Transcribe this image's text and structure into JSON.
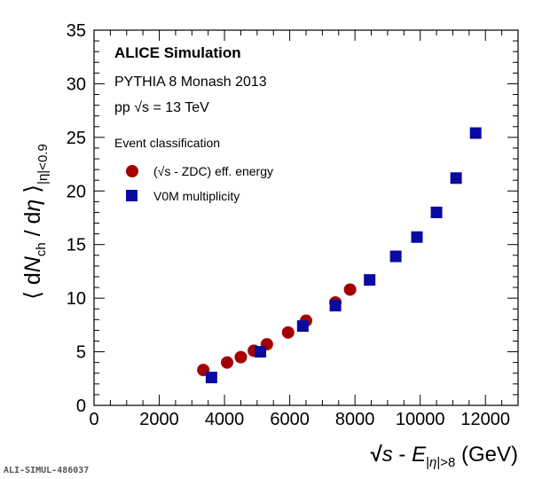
{
  "chart_data": {
    "type": "scatter",
    "xlim": [
      0,
      13000
    ],
    "ylim": [
      0,
      35
    ],
    "x_ticks": [
      0,
      2000,
      4000,
      6000,
      8000,
      10000,
      12000
    ],
    "y_ticks": [
      0,
      5,
      10,
      15,
      20,
      25,
      30,
      35
    ],
    "xlabel": "√s - E|η|>8 (GeV)",
    "ylabel": "⟨ dNch / dη ⟩|η|<0.9",
    "annotations": {
      "title": "ALICE Simulation",
      "generator": "PYTHIA 8 Monash 2013",
      "system": "pp  √s = 13 TeV"
    },
    "legend": {
      "header": "Event classification",
      "placement": "top-left"
    },
    "series": [
      {
        "name": "(√s - ZDC) eff. energy",
        "marker": "circle",
        "color": "#a50000",
        "x": [
          3350,
          4080,
          4500,
          4900,
          5300,
          5950,
          6500,
          7400,
          7850
        ],
        "y": [
          3.3,
          4.0,
          4.5,
          5.1,
          5.7,
          6.8,
          7.9,
          9.6,
          10.8
        ]
      },
      {
        "name": "V0M multiplicity",
        "marker": "square",
        "color": "#0a0aa0",
        "x": [
          3600,
          5100,
          6400,
          7400,
          8450,
          9250,
          9900,
          10500,
          11100,
          11700
        ],
        "y": [
          2.6,
          5.0,
          7.4,
          9.3,
          11.7,
          13.9,
          15.7,
          18.0,
          21.2,
          25.4
        ]
      }
    ]
  },
  "footer_id": "ALI-SIMUL-486037"
}
